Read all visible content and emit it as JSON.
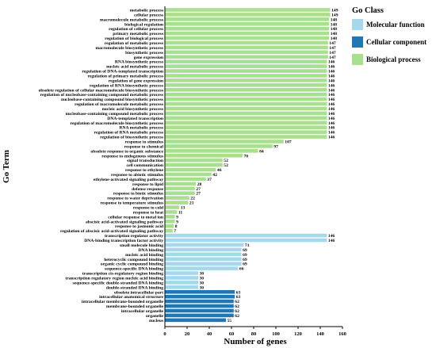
{
  "chart_data": {
    "type": "bar",
    "orientation": "horizontal",
    "xlabel": "Number of genes",
    "ylabel": "Go Term",
    "xlim": [
      0,
      160
    ],
    "xticks": [
      0,
      20,
      40,
      60,
      80,
      100,
      120,
      140,
      160
    ],
    "grid": false,
    "legend": {
      "title": "Go Class",
      "position": "top-right",
      "items": [
        {
          "name": "Molecular function",
          "color": "#a6d8ec"
        },
        {
          "name": "Cellular component",
          "color": "#1f78b4"
        },
        {
          "name": "Biological process",
          "color": "#a8e08f"
        }
      ]
    },
    "categories": [
      "metabolic process",
      "cellular process",
      "macromolecule metabolic process",
      "biological regulation",
      "regulation of cellular process",
      "primary metabolic process",
      "regulation of biological process",
      "regulation of metabolic process",
      "macromolecule biosynthetic process",
      "biosynthetic process",
      "gene expression",
      "RNA biosynthetic process",
      "nucleic acid metabolic process",
      "regulation of DNA-templated transcription",
      "regulation of primary metabolic process",
      "regulation of gene expression",
      "regulation of RNA biosynthetic process",
      "obsolete regulation of cellular macromolecule biosynthetic process",
      "regulation of nucleobase-containing compound metabolic process",
      "nucleobase-containing compound biosynthetic process",
      "regulation of macromolecule metabolic process",
      "nucleic acid biosynthetic process",
      "nucleobase-containing compound metabolic process",
      "DNA-templated transcription",
      "regulation of macromolecule biosynthetic process",
      "RNA metabolic process",
      "regulation of RNA metabolic process",
      "regulation of biosynthetic process",
      "response to stimulus",
      "response to chemical",
      "obsolete response to organic substance",
      "response to endogenous stimulus",
      "signal transduction",
      "cell communication",
      "response to ethylene",
      "response to abiotic stimulus",
      "ethylene-activated signaling pathway",
      "response to lipid",
      "defense response",
      "response to biotic stimulus",
      "response to water deprivation",
      "response to temperature stimulus",
      "response to cold",
      "response to heat",
      "cellular response to metal ion",
      "abscisic acid-activated signaling pathway",
      "response to jasmonic acid",
      "regulation of abscisic acid-activated signaling pathway",
      "transcription regulator activity",
      "DNA-binding transcription factor activity",
      "small molecule binding",
      "DNA binding",
      "nucleic acid binding",
      "heterocyclic compound binding",
      "organic cyclic compound binding",
      "sequence-specific DNA binding",
      "transcription cis-regulatory region binding",
      "transcription regulatory region nucleic acid binding",
      "sequence-specific double-stranded DNA binding",
      "double-stranded DNA binding",
      "obsolete intracellular part",
      "intracellular anatomical structure",
      "intracellular membrane-bounded organelle",
      "membrane-bounded organelle",
      "intracellular organelle",
      "organelle",
      "nucleus"
    ],
    "values": [
      149,
      149,
      148,
      148,
      148,
      148,
      148,
      147,
      147,
      147,
      147,
      146,
      146,
      146,
      146,
      146,
      146,
      146,
      146,
      146,
      146,
      146,
      146,
      146,
      146,
      146,
      146,
      146,
      107,
      97,
      84,
      70,
      52,
      52,
      46,
      42,
      37,
      28,
      27,
      27,
      22,
      21,
      13,
      11,
      9,
      9,
      8,
      7,
      146,
      146,
      71,
      69,
      69,
      69,
      69,
      66,
      30,
      30,
      30,
      30,
      63,
      63,
      62,
      62,
      62,
      62,
      55
    ],
    "classes": [
      "Biological process",
      "Biological process",
      "Biological process",
      "Biological process",
      "Biological process",
      "Biological process",
      "Biological process",
      "Biological process",
      "Biological process",
      "Biological process",
      "Biological process",
      "Biological process",
      "Biological process",
      "Biological process",
      "Biological process",
      "Biological process",
      "Biological process",
      "Biological process",
      "Biological process",
      "Biological process",
      "Biological process",
      "Biological process",
      "Biological process",
      "Biological process",
      "Biological process",
      "Biological process",
      "Biological process",
      "Biological process",
      "Biological process",
      "Biological process",
      "Biological process",
      "Biological process",
      "Biological process",
      "Biological process",
      "Biological process",
      "Biological process",
      "Biological process",
      "Biological process",
      "Biological process",
      "Biological process",
      "Biological process",
      "Biological process",
      "Biological process",
      "Biological process",
      "Biological process",
      "Biological process",
      "Biological process",
      "Biological process",
      "Molecular function",
      "Molecular function",
      "Molecular function",
      "Molecular function",
      "Molecular function",
      "Molecular function",
      "Molecular function",
      "Molecular function",
      "Molecular function",
      "Molecular function",
      "Molecular function",
      "Molecular function",
      "Cellular component",
      "Cellular component",
      "Cellular component",
      "Cellular component",
      "Cellular component",
      "Cellular component",
      "Cellular component"
    ]
  }
}
